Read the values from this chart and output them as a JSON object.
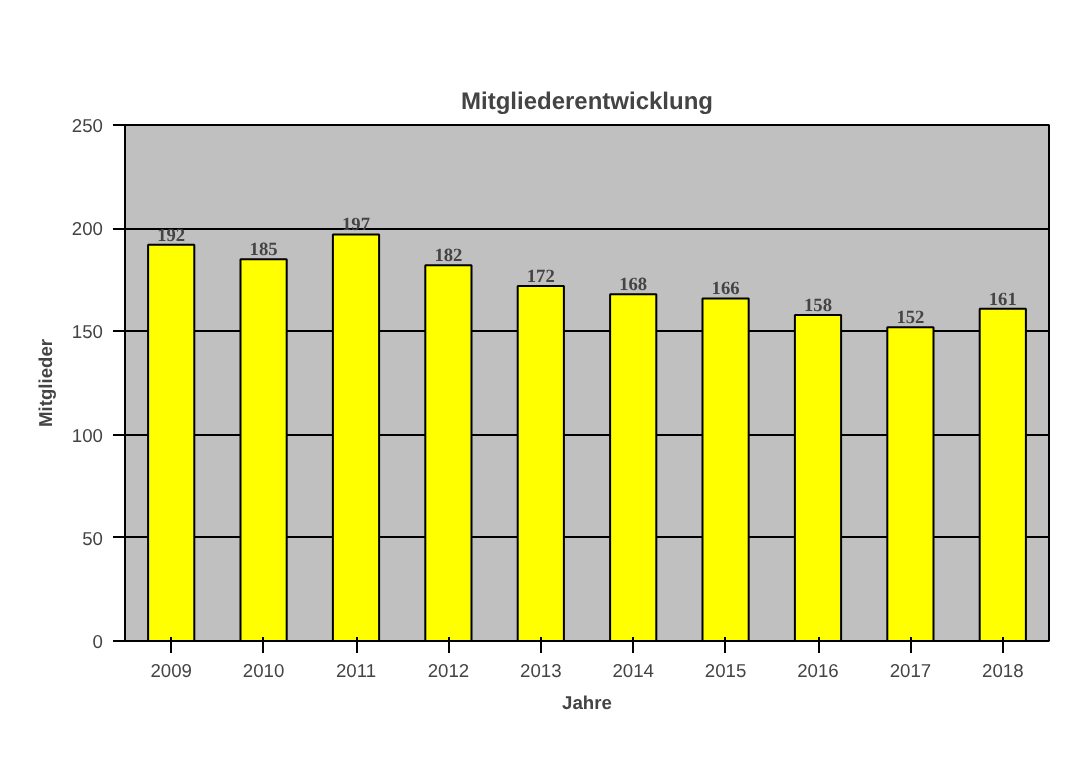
{
  "chart_data": {
    "type": "bar",
    "title": "Mitgliederentwicklung",
    "xlabel": "Jahre",
    "ylabel": "Mitglieder",
    "categories": [
      "2009",
      "2010",
      "2011",
      "2012",
      "2013",
      "2014",
      "2015",
      "2016",
      "2017",
      "2018"
    ],
    "values": [
      192,
      185,
      197,
      182,
      172,
      168,
      166,
      158,
      152,
      161
    ],
    "color": "#ffff00",
    "ylim": [
      0,
      250
    ],
    "yticks": [
      0,
      50,
      100,
      150,
      200,
      250
    ],
    "grid": "y",
    "data_labels": true
  }
}
